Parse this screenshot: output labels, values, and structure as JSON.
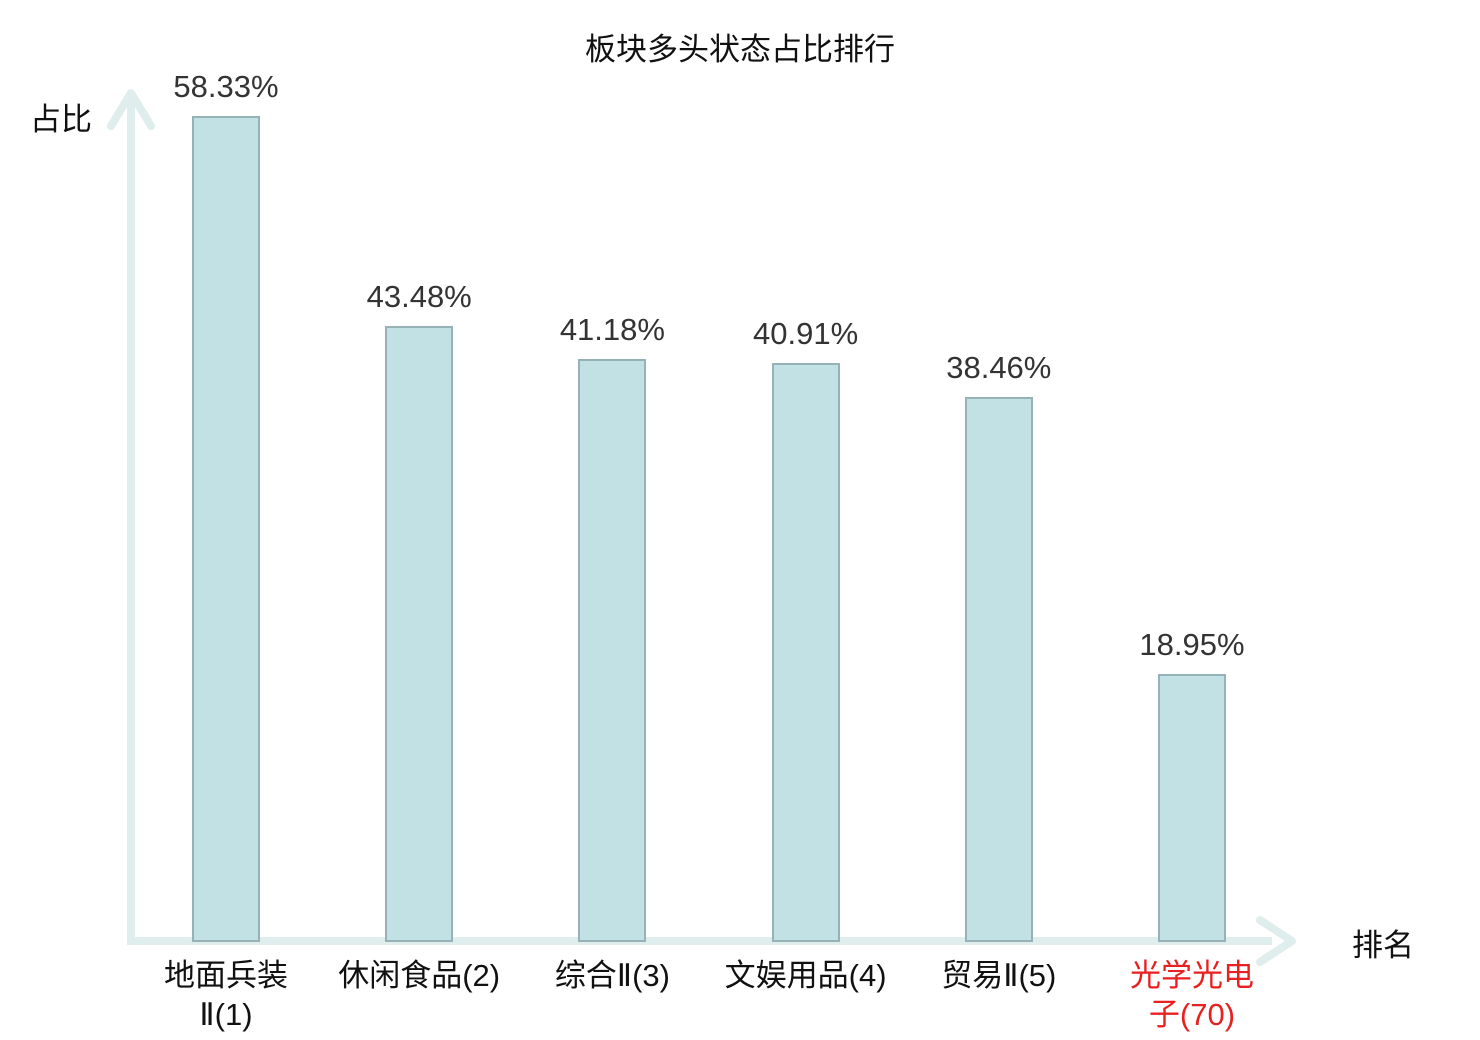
{
  "chart_data": {
    "type": "bar",
    "title": "板块多头状态占比排行",
    "ylabel": "占比",
    "xlabel": "排名",
    "categories": [
      "地面兵装Ⅱ(1)",
      "休闲食品(2)",
      "综合Ⅱ(3)",
      "文娱用品(4)",
      "贸易Ⅱ(5)",
      "光学光电子(70)"
    ],
    "category_display": [
      "地面兵装\nⅡ(1)",
      "休闲食品(2)",
      "综合Ⅱ(3)",
      "文娱用品(4)",
      "贸易Ⅱ(5)",
      "光学光电\n子(70)"
    ],
    "values": [
      58.33,
      43.48,
      41.18,
      40.91,
      38.46,
      18.95
    ],
    "value_labels": [
      "58.33%",
      "43.48%",
      "41.18%",
      "40.91%",
      "38.46%",
      "18.95%"
    ],
    "unit": "%",
    "highlight_index": 5,
    "ylim": [
      0,
      60
    ],
    "grid": false,
    "legend_position": "none",
    "colors": {
      "bar_fill": "#c1e1e5",
      "bar_border": "#97b2b6",
      "axis": "#dfeeec",
      "value_label": "#333333",
      "category_label": "#111111",
      "highlight": "#e82020",
      "title": "#111111"
    }
  }
}
